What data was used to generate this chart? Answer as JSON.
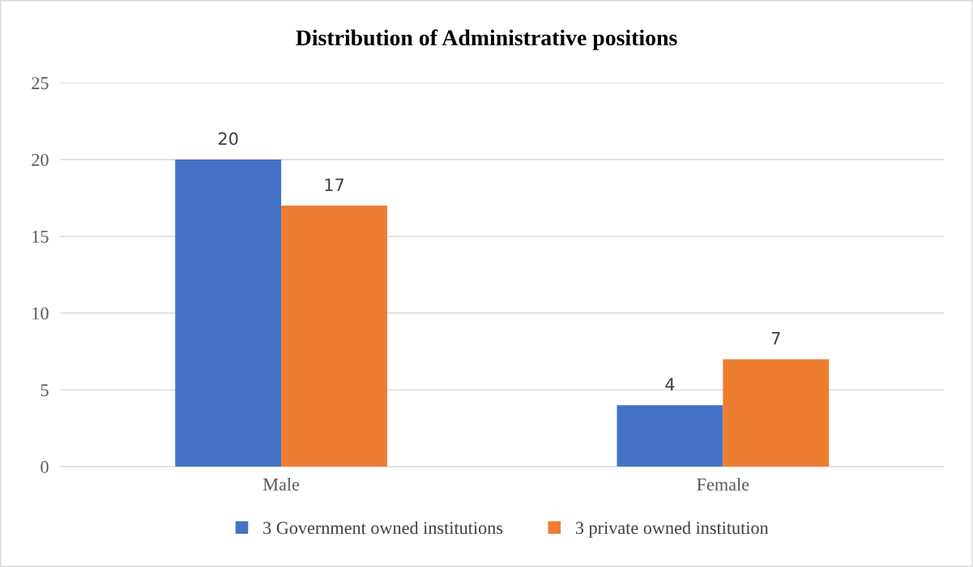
{
  "chart_data": {
    "type": "bar",
    "title": "Distribution of Administrative positions",
    "categories": [
      "Male",
      "Female"
    ],
    "series": [
      {
        "name": "3 Government owned institutions",
        "color": "#4472c4",
        "values": [
          20,
          4
        ]
      },
      {
        "name": "3 private owned institution",
        "color": "#ed7d31",
        "values": [
          17,
          7
        ]
      }
    ],
    "ylim": [
      0,
      25
    ],
    "yticks": [
      0,
      5,
      10,
      15,
      20,
      25
    ],
    "grid": "y",
    "legend": "bottom",
    "data_labels": true
  }
}
